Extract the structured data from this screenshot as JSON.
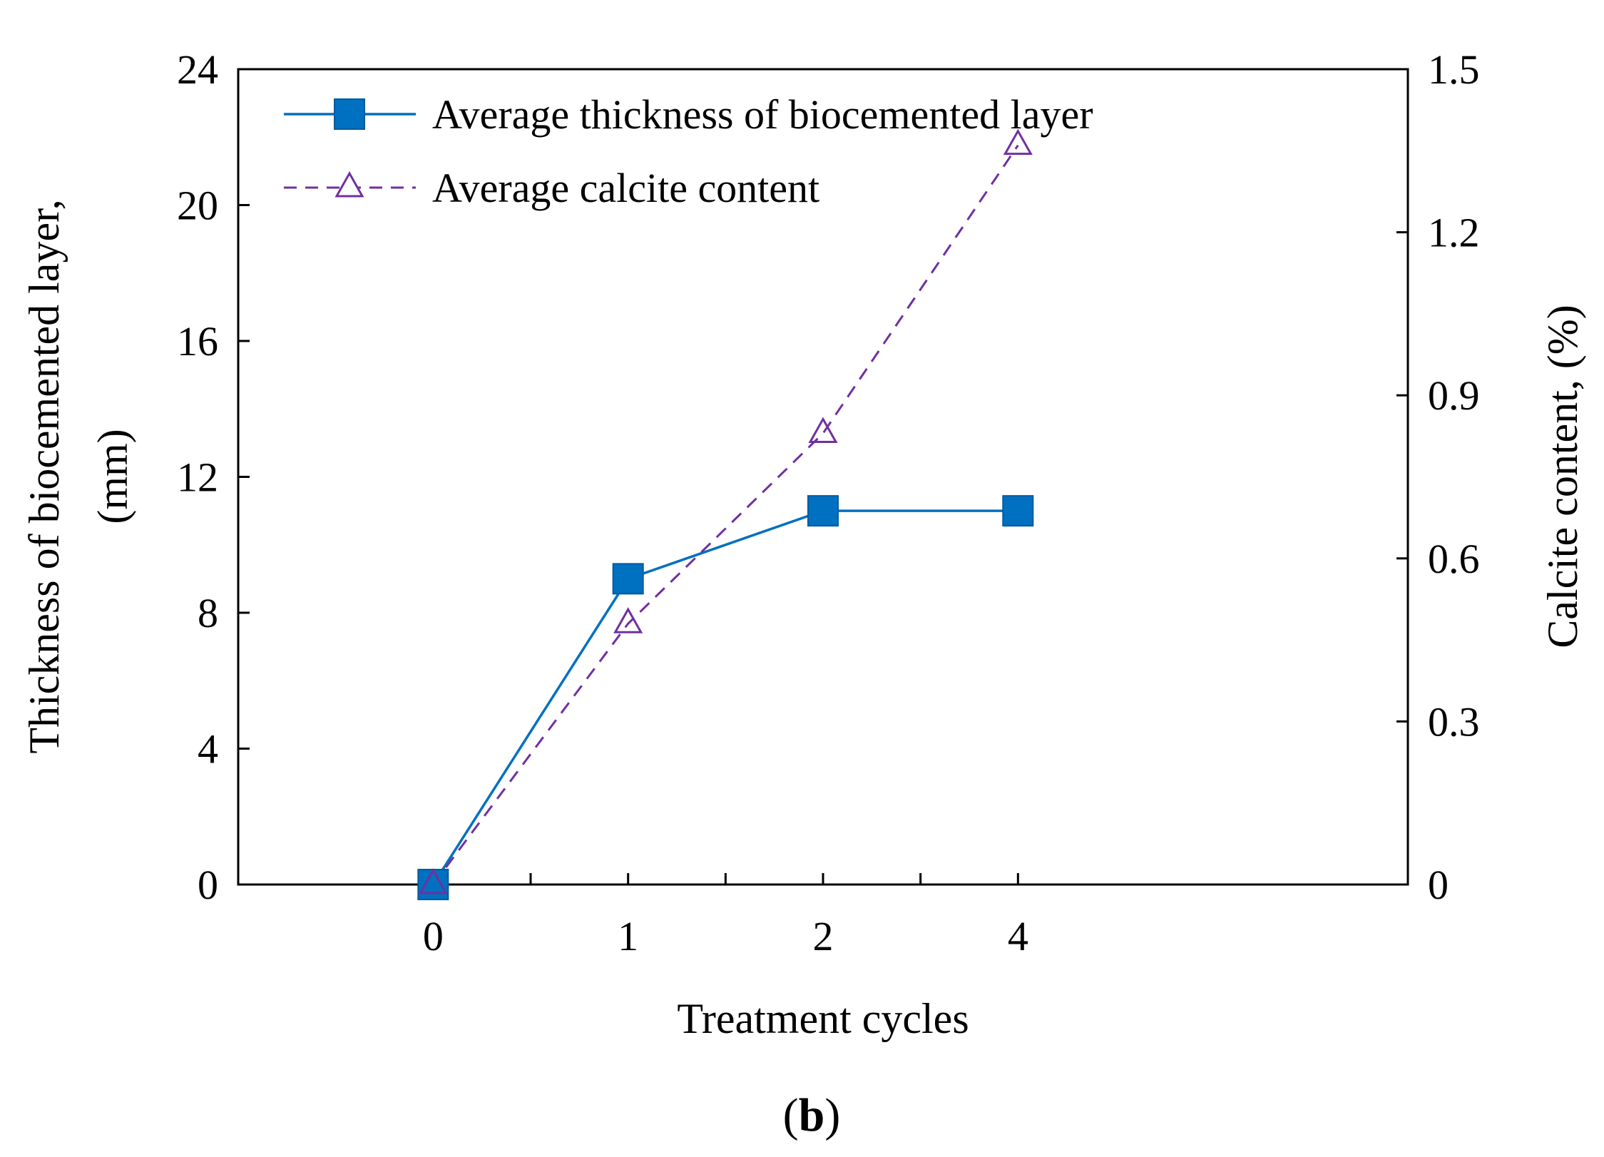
{
  "chart_data": {
    "type": "line",
    "categories": [
      "0",
      "1",
      "2",
      "4"
    ],
    "xlabel": "Treatment cycles",
    "y_left": {
      "label_line1": "Thickness of biocemented layer,",
      "label_line2": "(mm)",
      "range": [
        0,
        24
      ],
      "ticks": [
        "0",
        "4",
        "8",
        "12",
        "16",
        "20",
        "24"
      ]
    },
    "y_right": {
      "label": "Calcite content, (%)",
      "range": [
        0,
        1.5
      ],
      "ticks": [
        "0",
        "0.3",
        "0.6",
        "0.9",
        "1.2",
        "1.5"
      ]
    },
    "series": [
      {
        "name": "Average thickness of biocemented layer",
        "axis": "left",
        "values": [
          0,
          9,
          11,
          11
        ],
        "color": "#0070C0",
        "marker": "filled-square",
        "line": "solid"
      },
      {
        "name": "Average calcite content",
        "axis": "right",
        "values": [
          0,
          0.48,
          0.83,
          1.36
        ],
        "color": "#7030A0",
        "marker": "open-triangle",
        "line": "dashed"
      }
    ],
    "legend_position": "top-left",
    "grid": false
  },
  "panel_label": {
    "open": "(",
    "letter": "b",
    "close": ")"
  }
}
